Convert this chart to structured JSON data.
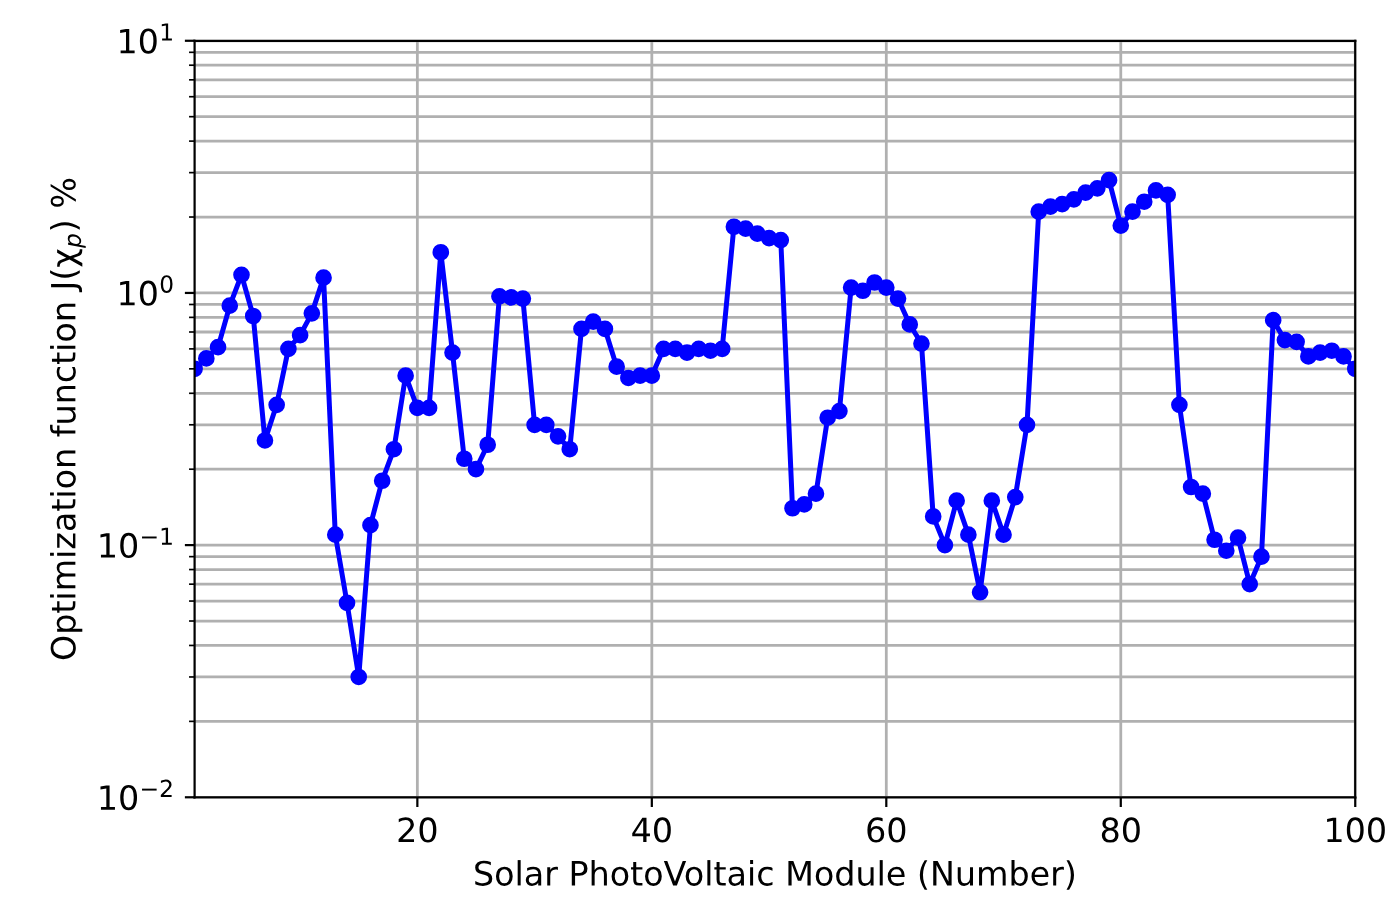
{
  "chart_data": {
    "type": "line",
    "xlabel": "Solar PhotoVoltaic Module (Number)",
    "ylabel": "Optimization function J(χ$_{p}$) %",
    "x": [
      1,
      2,
      3,
      4,
      5,
      6,
      7,
      8,
      9,
      10,
      11,
      12,
      13,
      14,
      15,
      16,
      17,
      18,
      19,
      20,
      21,
      22,
      23,
      24,
      25,
      26,
      27,
      28,
      29,
      30,
      31,
      32,
      33,
      34,
      35,
      36,
      37,
      38,
      39,
      40,
      41,
      42,
      43,
      44,
      45,
      46,
      47,
      48,
      49,
      50,
      51,
      52,
      53,
      54,
      55,
      56,
      57,
      58,
      59,
      60,
      61,
      62,
      63,
      64,
      65,
      66,
      67,
      68,
      69,
      70,
      71,
      72,
      73,
      74,
      75,
      76,
      77,
      78,
      79,
      80,
      81,
      82,
      83,
      84,
      85,
      86,
      87,
      88,
      89,
      90,
      91,
      92,
      93,
      94,
      95,
      96,
      97,
      98,
      99,
      100
    ],
    "series": [
      {
        "color": "#0000ff",
        "values": [
          0.5,
          0.55,
          0.61,
          0.89,
          1.18,
          0.81,
          0.26,
          0.36,
          0.6,
          0.68,
          0.83,
          1.15,
          0.11,
          0.059,
          0.03,
          0.12,
          0.18,
          0.24,
          0.47,
          0.35,
          0.35,
          1.45,
          0.58,
          0.22,
          0.2,
          0.25,
          0.97,
          0.96,
          0.95,
          0.3,
          0.3,
          0.27,
          0.24,
          0.72,
          0.77,
          0.72,
          0.51,
          0.46,
          0.47,
          0.47,
          0.6,
          0.6,
          0.58,
          0.6,
          0.59,
          0.6,
          1.83,
          1.8,
          1.72,
          1.65,
          1.62,
          0.14,
          0.145,
          0.16,
          0.32,
          0.34,
          1.05,
          1.02,
          1.1,
          1.05,
          0.95,
          0.75,
          0.63,
          0.13,
          0.1,
          0.15,
          0.11,
          0.065,
          0.15,
          0.11,
          0.155,
          0.3,
          2.1,
          2.2,
          2.25,
          2.35,
          2.5,
          2.6,
          2.8,
          1.85,
          2.1,
          2.3,
          2.55,
          2.45,
          0.36,
          0.17,
          0.16,
          0.105,
          0.095,
          0.107,
          0.07,
          0.09,
          0.78,
          0.65,
          0.64,
          0.56,
          0.58,
          0.59,
          0.56,
          0.5
        ]
      }
    ],
    "xlim": [
      1,
      100
    ],
    "xticks": [
      20,
      40,
      60,
      80,
      100
    ],
    "ylim": [
      0.01,
      10
    ],
    "yticks": [
      {
        "value": 0.01,
        "label": "10$^{−2}$"
      },
      {
        "value": 0.1,
        "label": "10$^{−1}$"
      },
      {
        "value": 1,
        "label": "10$^{0}$"
      },
      {
        "value": 10,
        "label": "10$^{1}$"
      }
    ],
    "log": "y",
    "grid": true,
    "marker": "circle",
    "line_style": "solid"
  }
}
